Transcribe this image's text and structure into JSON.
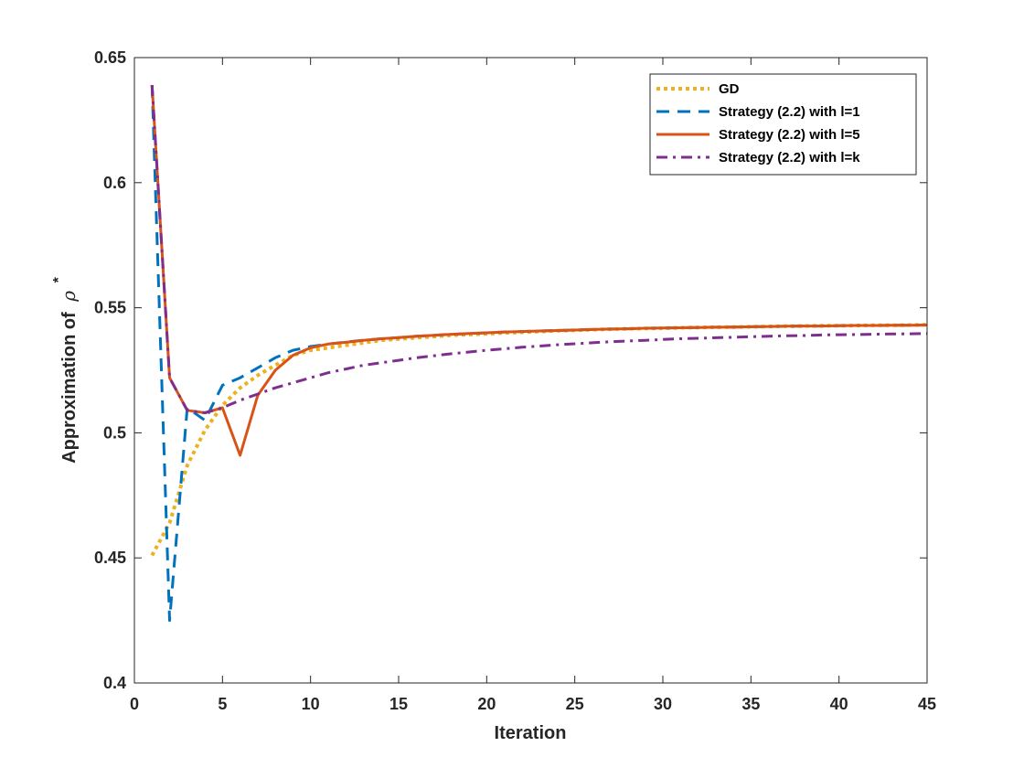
{
  "chart_data": {
    "type": "line",
    "title": "",
    "xlabel": "Iteration",
    "ylabel": "Approximation of",
    "ylabel_symbol": "ρ",
    "ylabel_superscript": "*",
    "xlim": [
      0,
      45
    ],
    "ylim": [
      0.4,
      0.65
    ],
    "xticks": [
      0,
      5,
      10,
      15,
      20,
      25,
      30,
      35,
      40,
      45
    ],
    "yticks": [
      0.4,
      0.45,
      0.5,
      0.55,
      0.6,
      0.65
    ],
    "ytick_labels": [
      "0.4",
      "0.45",
      "0.5",
      "0.55",
      "0.6",
      "0.65"
    ],
    "grid": false,
    "legend_position": "top-right",
    "x": [
      1,
      2,
      3,
      4,
      5,
      6,
      7,
      8,
      9,
      10,
      11,
      12,
      13,
      14,
      15,
      16,
      17,
      18,
      19,
      20,
      21,
      22,
      23,
      24,
      25,
      26,
      27,
      28,
      29,
      30,
      31,
      32,
      33,
      34,
      35,
      36,
      37,
      38,
      39,
      40,
      41,
      42,
      43,
      44,
      45
    ],
    "series": [
      {
        "name": "GD",
        "color": "#EDB120",
        "style": "dotted",
        "values": [
          0.451,
          0.464,
          0.487,
          0.501,
          0.511,
          0.518,
          0.523,
          0.527,
          0.531,
          0.533,
          0.534,
          0.535,
          0.536,
          0.537,
          0.5375,
          0.538,
          0.5385,
          0.539,
          0.5393,
          0.5396,
          0.54,
          0.5402,
          0.5405,
          0.5408,
          0.541,
          0.5412,
          0.5414,
          0.5416,
          0.5417,
          0.5418,
          0.542,
          0.5421,
          0.5422,
          0.5423,
          0.5424,
          0.5425,
          0.5426,
          0.5427,
          0.5428,
          0.5428,
          0.5429,
          0.543,
          0.543,
          0.5431,
          0.5432
        ]
      },
      {
        "name": "Strategy (2.2) with l=1",
        "color": "#0072BD",
        "style": "dashed",
        "values": [
          0.639,
          0.425,
          0.51,
          0.505,
          0.519,
          0.522,
          0.526,
          0.53,
          0.533,
          0.5345,
          0.5355,
          0.5363,
          0.537,
          0.5376,
          0.5381,
          0.5386,
          0.539,
          0.5394,
          0.5397,
          0.54,
          0.5403,
          0.5405,
          0.5407,
          0.5409,
          0.5411,
          0.5413,
          0.5415,
          0.5416,
          0.5418,
          0.5419,
          0.542,
          0.5421,
          0.5422,
          0.5423,
          0.5424,
          0.5425,
          0.5426,
          0.5427,
          0.5427,
          0.5428,
          0.5429,
          0.5429,
          0.543,
          0.543,
          0.5431
        ]
      },
      {
        "name": "Strategy (2.2) with l=5",
        "color": "#D95319",
        "style": "solid",
        "values": [
          0.639,
          0.522,
          0.509,
          0.508,
          0.51,
          0.491,
          0.515,
          0.525,
          0.531,
          0.534,
          0.5355,
          0.5362,
          0.537,
          0.5376,
          0.5381,
          0.5386,
          0.539,
          0.5394,
          0.5397,
          0.54,
          0.5403,
          0.5405,
          0.5407,
          0.5409,
          0.5411,
          0.5413,
          0.5415,
          0.5416,
          0.5418,
          0.5419,
          0.542,
          0.5421,
          0.5422,
          0.5423,
          0.5424,
          0.5425,
          0.5426,
          0.5427,
          0.5427,
          0.5428,
          0.5429,
          0.5429,
          0.543,
          0.543,
          0.5431
        ]
      },
      {
        "name": "Strategy (2.2) with l=k",
        "color": "#7E2F8E",
        "style": "dashdot",
        "values": [
          0.639,
          0.522,
          0.509,
          0.508,
          0.51,
          0.513,
          0.5155,
          0.518,
          0.52,
          0.522,
          0.524,
          0.5255,
          0.527,
          0.528,
          0.529,
          0.53,
          0.5308,
          0.5316,
          0.5323,
          0.533,
          0.5336,
          0.5342,
          0.5347,
          0.5352,
          0.5356,
          0.536,
          0.5364,
          0.5367,
          0.537,
          0.5373,
          0.5376,
          0.5378,
          0.538,
          0.5382,
          0.5384,
          0.5386,
          0.5388,
          0.5389,
          0.5391,
          0.5392,
          0.5393,
          0.5394,
          0.5395,
          0.5396,
          0.5397
        ]
      }
    ]
  }
}
